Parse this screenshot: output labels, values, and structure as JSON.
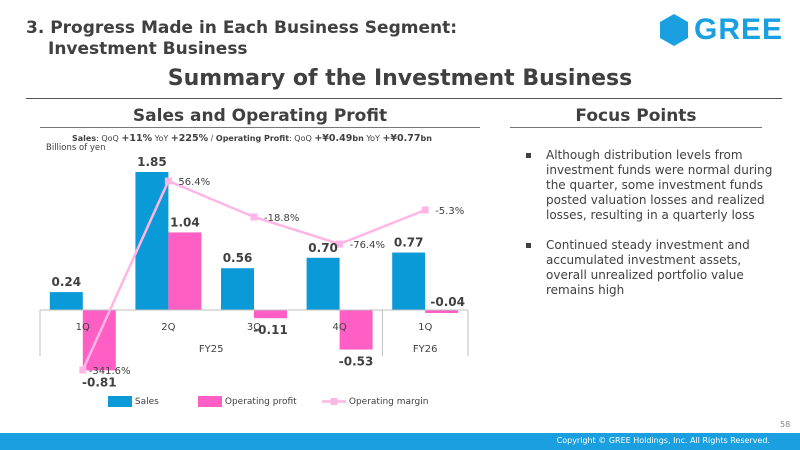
{
  "header": {
    "line1": "3. Progress Made in Each Business Segment:",
    "line2": "Investment Business"
  },
  "logo": {
    "text": "GREE",
    "color": "#1aa0e0"
  },
  "main_title": "Summary of the Investment Business",
  "left_section": {
    "title": "Sales and Operating Profit",
    "summary": {
      "sales_label": "Sales",
      "qoq_label": "QoQ",
      "sales_qoq": "+11%",
      "yoy_label": "YoY",
      "sales_yoy": "+225%",
      "separator": " / ",
      "op_label": "Operating Profit",
      "op_qoq": "+¥0.49",
      "op_qoq_unit": "bn",
      "op_yoy": "+¥0.77",
      "op_yoy_unit": "bn"
    },
    "unit": "Billions of yen"
  },
  "right_section": {
    "title": "Focus Points",
    "bullets": [
      "Although distribution levels from investment funds were normal during the quarter, some investment funds posted valuation losses and realized losses, resulting in a quarterly loss",
      "Continued steady investment and accumulated investment assets, overall unrealized portfolio value remains high"
    ]
  },
  "chart_data": {
    "type": "bar",
    "categories": [
      "1Q",
      "2Q",
      "3Q",
      "4Q",
      "1Q"
    ],
    "groups": [
      {
        "label": "FY25",
        "span": 4
      },
      {
        "label": "FY26",
        "span": 1
      }
    ],
    "series": [
      {
        "name": "Sales",
        "values": [
          0.24,
          1.85,
          0.56,
          0.7,
          0.77
        ],
        "labels": [
          "0.24",
          "1.85",
          "0.56",
          "0.70",
          "0.77"
        ],
        "color": "#0a9ad8"
      },
      {
        "name": "Operating profit",
        "values": [
          -0.81,
          1.04,
          -0.11,
          -0.53,
          -0.04
        ],
        "labels": [
          "-0.81",
          "1.04",
          "-0.11",
          "-0.53",
          "-0.04"
        ],
        "color": "#ff5fc4"
      },
      {
        "name": "Operating margin",
        "type": "line",
        "values": [
          -341.6,
          56.4,
          -18.8,
          -76.4,
          -5.3
        ],
        "labels": [
          "-341.6%",
          "56.4%",
          "-18.8%",
          "-76.4%",
          "-5.3%"
        ],
        "color": "#ffb6e4"
      }
    ],
    "ylim": [
      -0.81,
      1.85
    ],
    "ylabel": "Billions of yen"
  },
  "legend": {
    "sales": "Sales",
    "op": "Operating profit",
    "margin": "Operating margin"
  },
  "page_number": "58",
  "footer": "Copyright © GREE Holdings, Inc. All Rights Reserved."
}
